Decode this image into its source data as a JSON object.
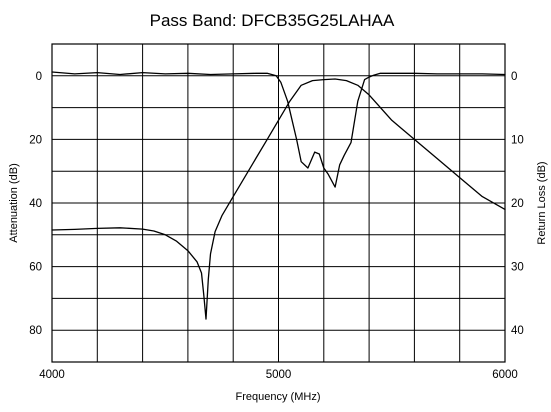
{
  "chart_data": {
    "type": "line",
    "title": "Pass Band: DFCB35G25LAHAA",
    "xlabel": "Frequency (MHz)",
    "ylabel_left": "Attenuation (dB)",
    "ylabel_right": "Return Loss (dB)",
    "xlim": [
      4000,
      6000
    ],
    "ylim_left": [
      -10,
      90
    ],
    "ylim_right": [
      -5,
      45
    ],
    "y_inverted": true,
    "grid": true,
    "x_ticks": [
      4000,
      5000,
      6000
    ],
    "y_ticks_left": [
      0,
      20,
      40,
      60,
      80
    ],
    "y_ticks_right": [
      0,
      10,
      20,
      30,
      40
    ],
    "x_gridlines": [
      4000,
      4200,
      4400,
      4600,
      4800,
      5000,
      5200,
      5400,
      5600,
      5800,
      6000
    ],
    "y_gridlines_left": [
      -10,
      0,
      10,
      20,
      30,
      40,
      50,
      60,
      70,
      80,
      90
    ],
    "series": [
      {
        "axis": "left",
        "x": [
          4000,
          4100,
          4200,
          4300,
          4400,
          4450,
          4500,
          4550,
          4600,
          4640,
          4660,
          4670,
          4680,
          4690,
          4700,
          4720,
          4750,
          4800,
          4850,
          4900,
          4950,
          5000,
          5050,
          5100,
          5150,
          5200,
          5250,
          5300,
          5350,
          5400,
          5450,
          5500,
          5600,
          5700,
          5800,
          5900,
          6000
        ],
        "values": [
          48.5,
          48.3,
          48,
          47.8,
          48.2,
          48.8,
          50,
          52,
          55,
          58.5,
          62,
          69,
          76.5,
          64,
          56,
          49,
          44,
          38,
          32,
          26,
          20,
          14,
          8,
          3,
          1.5,
          1.2,
          1,
          1.5,
          3,
          6,
          10,
          14,
          20,
          26,
          32,
          38,
          42
        ]
      },
      {
        "axis": "right",
        "x": [
          4000,
          4100,
          4200,
          4300,
          4400,
          4500,
          4600,
          4700,
          4800,
          4900,
          4950,
          4990,
          5010,
          5040,
          5060,
          5080,
          5100,
          5130,
          5160,
          5180,
          5200,
          5220,
          5250,
          5270,
          5290,
          5320,
          5350,
          5380,
          5400,
          5420,
          5450,
          5500,
          5600,
          5700,
          5800,
          5900,
          6000
        ],
        "values": [
          -0.6,
          -0.3,
          -0.5,
          -0.2,
          -0.5,
          -0.3,
          -0.4,
          -0.2,
          -0.3,
          -0.4,
          -0.4,
          0,
          1,
          4,
          7,
          10,
          13.5,
          14.5,
          12,
          12.3,
          14.5,
          15.5,
          17.5,
          14,
          12.5,
          10.5,
          4,
          0.6,
          0.2,
          -0.1,
          -0.4,
          -0.4,
          -0.4,
          -0.3,
          -0.3,
          -0.3,
          -0.2
        ]
      }
    ]
  }
}
